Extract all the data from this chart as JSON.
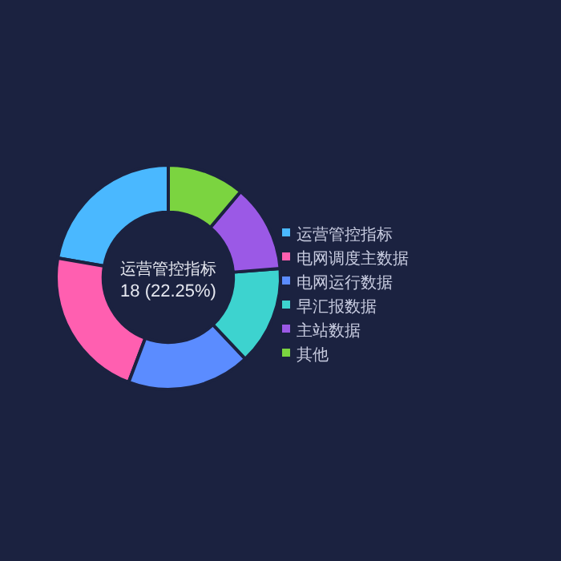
{
  "chart_data": {
    "type": "donut",
    "categories": [
      "运营管控指标",
      "电网调度主数据",
      "电网运行数据",
      "早汇报数据",
      "主站数据",
      "其他"
    ],
    "values": [
      22.25,
      22.0,
      17.8,
      14.2,
      12.6,
      11.15
    ],
    "colors": [
      "#4ab8ff",
      "#ff5fb0",
      "#5b8cff",
      "#3dd3cf",
      "#9b59e6",
      "#7bd440"
    ],
    "legend": "right",
    "annotations": [
      "运营管控指标",
      "18 (22.25%)"
    ]
  }
}
